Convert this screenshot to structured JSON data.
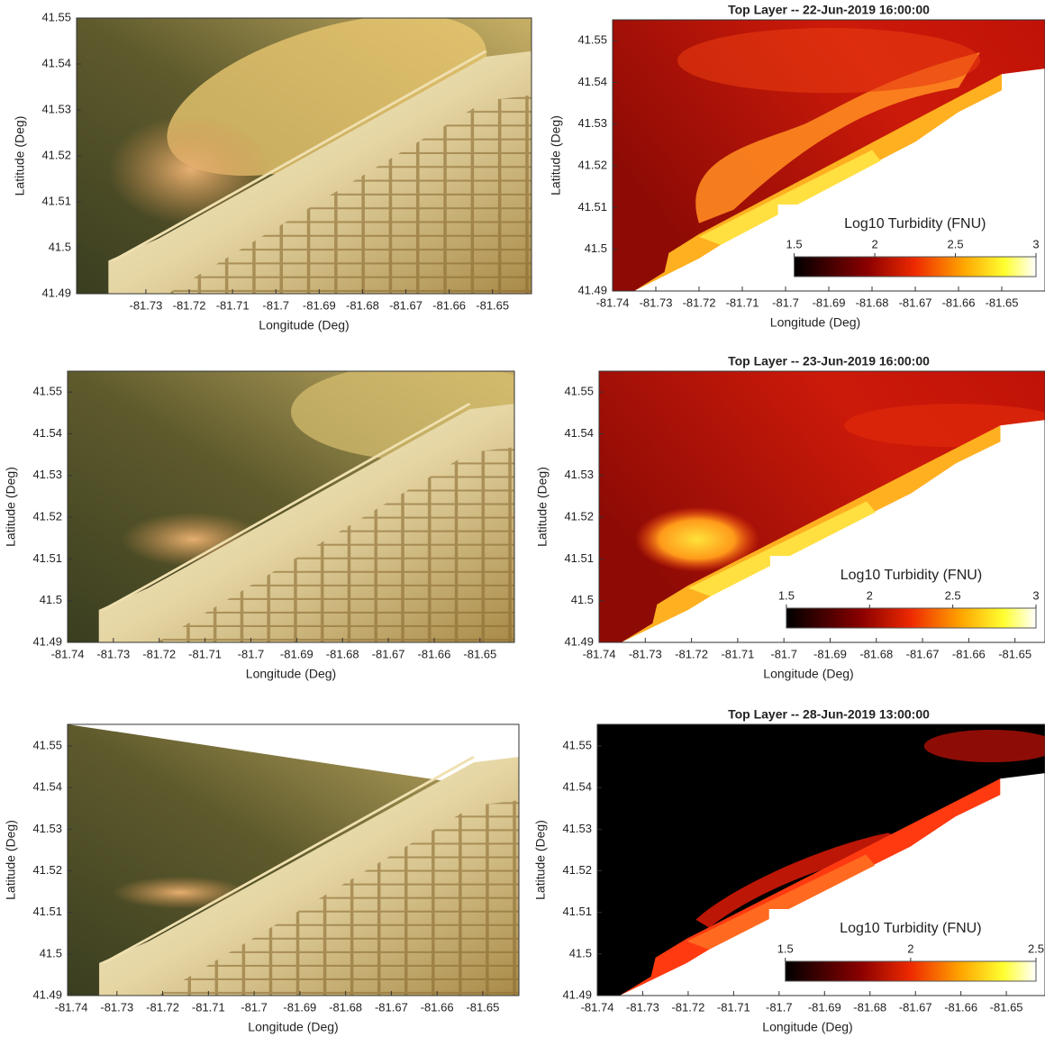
{
  "chart_data": [
    {
      "type": "map",
      "xlabel": "Longitude (Deg)",
      "ylabel": "Latitude (Deg)",
      "xlim": [
        -81.746,
        -81.641
      ],
      "ylim": [
        41.49,
        41.55
      ],
      "xticks": [
        -81.73,
        -81.72,
        -81.71,
        -81.7,
        -81.69,
        -81.68,
        -81.67,
        -81.66,
        -81.65
      ],
      "yticks": [
        41.49,
        41.5,
        41.51,
        41.52,
        41.53,
        41.54,
        41.55
      ]
    },
    {
      "type": "map",
      "title": "Top Layer -- 22-Jun-2019 16:00:00",
      "xlabel": "Longitude (Deg)",
      "ylabel": "Latitude (Deg)",
      "xlim": [
        -81.74,
        -81.64
      ],
      "ylim": [
        41.49,
        41.555
      ],
      "xticks": [
        -81.74,
        -81.73,
        -81.72,
        -81.71,
        -81.7,
        -81.69,
        -81.68,
        -81.67,
        -81.66,
        -81.65
      ],
      "yticks": [
        41.49,
        41.5,
        41.51,
        41.52,
        41.53,
        41.54,
        41.55
      ],
      "colorbar": {
        "label": "Log10 Turbidity (FNU)",
        "lim": [
          1.5,
          3
        ],
        "ticks": [
          1.5,
          2,
          2.5,
          3
        ]
      }
    },
    {
      "type": "map",
      "xlabel": "Longitude (Deg)",
      "ylabel": "Latitude (Deg)",
      "xlim": [
        -81.74,
        -81.6425
      ],
      "ylim": [
        41.49,
        41.555
      ],
      "xticks": [
        -81.74,
        -81.73,
        -81.72,
        -81.71,
        -81.7,
        -81.69,
        -81.68,
        -81.67,
        -81.66,
        -81.65
      ],
      "yticks": [
        41.49,
        41.5,
        41.51,
        41.52,
        41.53,
        41.54,
        41.55
      ]
    },
    {
      "type": "map",
      "title": "Top Layer -- 23-Jun-2019 16:00:00",
      "xlabel": "Longitude (Deg)",
      "ylabel": "Latitude (Deg)",
      "xlim": [
        -81.74,
        -81.6435
      ],
      "ylim": [
        41.49,
        41.555
      ],
      "xticks": [
        -81.74,
        -81.73,
        -81.72,
        -81.71,
        -81.7,
        -81.69,
        -81.68,
        -81.67,
        -81.66,
        -81.65
      ],
      "yticks": [
        41.49,
        41.5,
        41.51,
        41.52,
        41.53,
        41.54,
        41.55
      ],
      "colorbar": {
        "label": "Log10 Turbidity (FNU)",
        "lim": [
          1.5,
          3
        ],
        "ticks": [
          1.5,
          2,
          2.5,
          3
        ]
      }
    },
    {
      "type": "map",
      "xlabel": "Longitude (Deg)",
      "ylabel": "Latitude (Deg)",
      "xlim": [
        -81.7408,
        -81.6421
      ],
      "ylim": [
        41.49,
        41.5552
      ],
      "xticks": [
        -81.74,
        -81.73,
        -81.72,
        -81.71,
        -81.7,
        -81.69,
        -81.68,
        -81.67,
        -81.66,
        -81.65
      ],
      "yticks": [
        41.49,
        41.5,
        41.51,
        41.52,
        41.53,
        41.54,
        41.55
      ]
    },
    {
      "type": "map",
      "title": "Top Layer -- 28-Jun-2019 13:00:00",
      "xlabel": "Longitude (Deg)",
      "ylabel": "Latitude (Deg)",
      "xlim": [
        -81.74,
        -81.6415
      ],
      "ylim": [
        41.49,
        41.5552
      ],
      "xticks": [
        -81.74,
        -81.73,
        -81.72,
        -81.71,
        -81.7,
        -81.69,
        -81.68,
        -81.67,
        -81.66,
        -81.65
      ],
      "yticks": [
        41.49,
        41.5,
        41.51,
        41.52,
        41.53,
        41.54,
        41.55
      ],
      "colorbar": {
        "label": "Log10 Turbidity (FNU)",
        "lim": [
          1.5,
          2.5
        ],
        "ticks": [
          1.5,
          2,
          2.5
        ]
      }
    }
  ]
}
